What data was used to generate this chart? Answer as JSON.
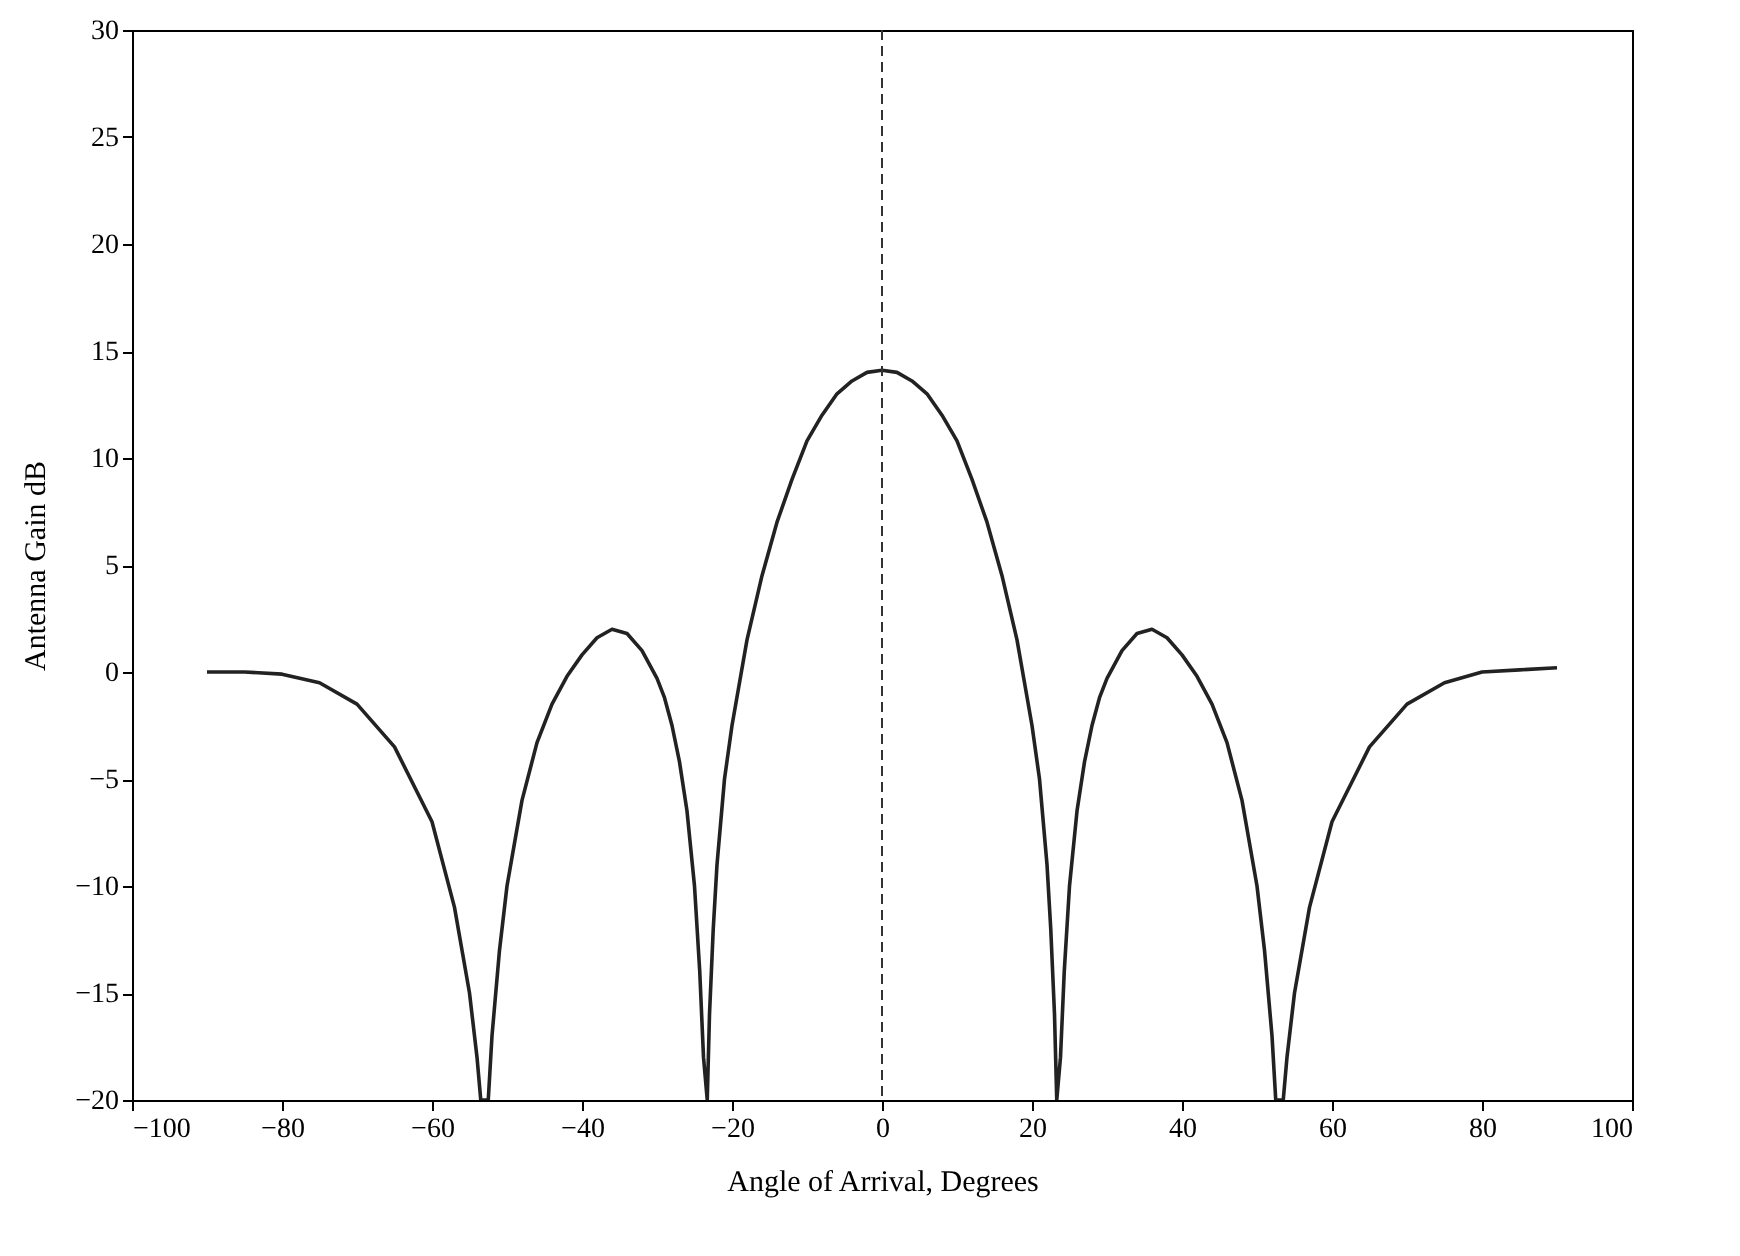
{
  "chart_data": {
    "type": "line",
    "xlabel": "Angle of Arrival, Degrees",
    "ylabel": "Antenna Gain  dB",
    "xlim": [
      -100,
      100
    ],
    "ylim": [
      -20,
      30
    ],
    "xticks": [
      -100,
      -80,
      -60,
      -40,
      -20,
      0,
      20,
      40,
      60,
      80,
      100
    ],
    "yticks": [
      -20,
      -15,
      -10,
      -5,
      0,
      5,
      10,
      15,
      20,
      25,
      30
    ],
    "grid": false,
    "marker": "none",
    "line_style": "solid",
    "series": [
      {
        "color": "#222222",
        "x": [
          -90,
          -85,
          -80,
          -75,
          -70,
          -65,
          -60,
          -57,
          -55,
          -54,
          -53.5,
          -52.5,
          -52,
          -51,
          -50,
          -48,
          -46,
          -44,
          -42,
          -40,
          -38,
          -36,
          -34,
          -32,
          -30,
          -29,
          -28,
          -27,
          -26,
          -25,
          -24.3,
          -23.8,
          -23.3,
          -23,
          -22.5,
          -22,
          -21,
          -20,
          -18,
          -16,
          -14,
          -12,
          -10,
          -8,
          -6,
          -4,
          -2,
          0,
          2,
          4,
          6,
          8,
          10,
          12,
          14,
          16,
          18,
          20,
          21,
          22,
          22.5,
          23,
          23.3,
          23.8,
          24.3,
          25,
          26,
          27,
          28,
          29,
          30,
          32,
          34,
          36,
          38,
          40,
          42,
          44,
          46,
          48,
          50,
          51,
          52,
          52.5,
          53.5,
          54,
          55,
          57,
          60,
          65,
          70,
          75,
          80,
          85,
          90
        ],
        "values": [
          0,
          0,
          -0.1,
          -0.5,
          -1.5,
          -3.5,
          -7,
          -11,
          -15,
          -18,
          -20,
          -20,
          -17,
          -13,
          -10,
          -6,
          -3.3,
          -1.5,
          -0.2,
          0.8,
          1.6,
          2,
          1.8,
          1,
          -0.3,
          -1.2,
          -2.5,
          -4.2,
          -6.5,
          -10,
          -14,
          -18,
          -20,
          -16,
          -12,
          -9,
          -5,
          -2.5,
          1.5,
          4.5,
          7,
          9,
          10.8,
          12,
          13,
          13.6,
          14,
          14.1,
          14,
          13.6,
          13,
          12,
          10.8,
          9,
          7,
          4.5,
          1.5,
          -2.5,
          -5,
          -9,
          -12,
          -16,
          -20,
          -18,
          -14,
          -10,
          -6.5,
          -4.2,
          -2.5,
          -1.2,
          -0.3,
          1,
          1.8,
          2,
          1.6,
          0.8,
          -0.2,
          -1.5,
          -3.3,
          -6,
          -10,
          -13,
          -17,
          -20,
          -20,
          -18,
          -15,
          -11,
          -7,
          -3.5,
          -1.5,
          -0.5,
          0,
          0.1,
          0.2
        ]
      }
    ],
    "ref_lines": [
      {
        "axis": "x",
        "value": 0,
        "line_style": "dashed",
        "color": "#333333"
      }
    ]
  }
}
